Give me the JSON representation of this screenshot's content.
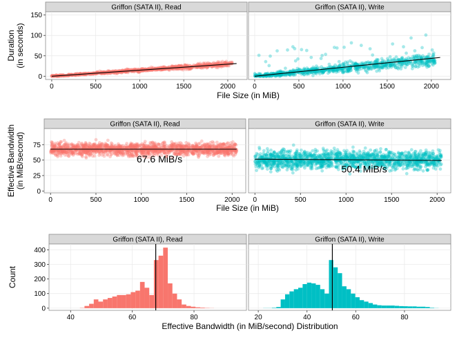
{
  "charts": [
    {
      "type": "scatter",
      "row": "duration",
      "ylabel_lines": [
        "Duration",
        "(in seconds)"
      ],
      "xlabel": "File Size (in MiB)",
      "xlim": [
        -70,
        2220
      ],
      "ylim": [
        -8,
        158
      ],
      "xticks": [
        0,
        500,
        1000,
        1500,
        2000
      ],
      "yticks": [
        0,
        50,
        100,
        150
      ],
      "panels": [
        {
          "strip": "Griffon (SATA II), Read",
          "color": "#F8766D",
          "fit": {
            "x": [
              0,
              2100
            ],
            "y": [
              0,
              31
            ]
          },
          "points": {
            "x_range": [
              0,
              2050
            ],
            "slope": 0.0148,
            "spread": 3,
            "count": 900
          }
        },
        {
          "strip": "Griffon (SATA II), Write",
          "color": "#00BFC4",
          "fit": {
            "x": [
              0,
              2100
            ],
            "y": [
              0,
              46
            ]
          },
          "points": {
            "x_range": [
              0,
              2050
            ],
            "slope": 0.0199,
            "spread": 8,
            "count": 900
          }
        }
      ]
    },
    {
      "type": "scatter",
      "row": "bandwidth",
      "ylabel_lines": [
        "Effective Bandwidth",
        "(in MiB/second)"
      ],
      "xlabel": "File Size (in MiB)",
      "xlim": [
        -70,
        2150
      ],
      "ylim": [
        -3,
        101
      ],
      "xticks": [
        0,
        500,
        1000,
        1500,
        2000
      ],
      "yticks": [
        0,
        25,
        50,
        75
      ],
      "panels": [
        {
          "strip": "Griffon (SATA II), Read",
          "color": "#F8766D",
          "fit": {
            "x": [
              0,
              2050
            ],
            "y": [
              67.6,
              67.6
            ]
          },
          "annotation": {
            "text": "67.6 MiB/s",
            "x": 1200,
            "y": 46
          },
          "points": {
            "x_range": [
              0,
              2050
            ],
            "center": 67.6,
            "spread": 12,
            "count": 1500
          }
        },
        {
          "strip": "Griffon (SATA II), Write",
          "color": "#00BFC4",
          "fit": {
            "x": [
              0,
              2050
            ],
            "y": [
              51.5,
              49.4
            ]
          },
          "annotation": {
            "text": "50.4 MiB/s",
            "x": 1200,
            "y": 30
          },
          "points": {
            "x_range": [
              0,
              2050
            ],
            "center": 50.4,
            "spread": 18,
            "count": 1500
          }
        }
      ]
    },
    {
      "type": "bar",
      "row": "histogram",
      "ylabel_lines": [
        "Count"
      ],
      "xlabel": "Effective Bandwidth (in MiB/second) Distribution",
      "ylim": [
        -15,
        440
      ],
      "yticks": [
        0,
        100,
        200,
        300,
        400
      ],
      "panels": [
        {
          "strip": "Griffon (SATA II), Read",
          "color": "#F8766D",
          "xlim": [
            33,
            97
          ],
          "xticks": [
            40,
            60,
            80
          ],
          "bin_start": 37,
          "bin_width": 1.5,
          "counts": [
            0,
            0,
            0,
            0,
            2,
            15,
            30,
            60,
            45,
            60,
            70,
            80,
            90,
            90,
            95,
            110,
            120,
            180,
            140,
            90,
            330,
            360,
            415,
            170,
            100,
            60,
            25,
            15,
            10,
            6,
            4,
            2,
            1,
            0,
            0,
            0,
            0,
            0,
            0,
            0
          ],
          "mean": 67.6
        },
        {
          "strip": "Griffon (SATA II), Write",
          "color": "#00BFC4",
          "xlim": [
            16,
            99
          ],
          "xticks": [
            20,
            40,
            60,
            80
          ],
          "bin_start": 22,
          "bin_width": 1.8,
          "counts": [
            1,
            1,
            3,
            8,
            60,
            95,
            115,
            130,
            140,
            165,
            175,
            170,
            160,
            130,
            100,
            330,
            280,
            240,
            150,
            130,
            100,
            75,
            55,
            45,
            35,
            25,
            20,
            18,
            18,
            18,
            16,
            14,
            13,
            12,
            12,
            10,
            10,
            8,
            3,
            1
          ],
          "mean": 50.4
        }
      ]
    }
  ]
}
